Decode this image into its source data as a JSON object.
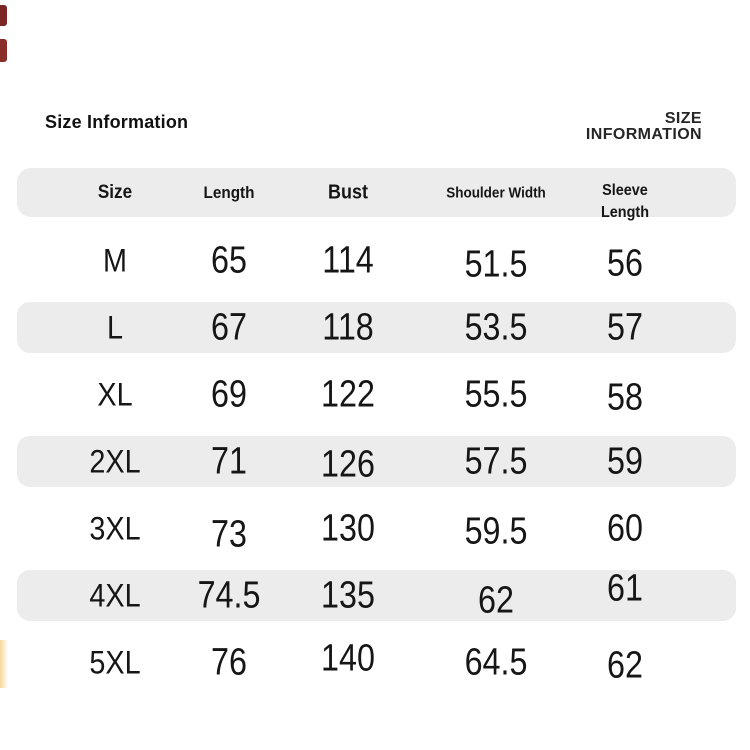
{
  "header": {
    "title_left": "Size Information",
    "title_right": [
      "SIZE",
      "INFORMATION"
    ]
  },
  "chart_data": {
    "type": "table",
    "title": "Size Information",
    "columns": [
      "Size",
      "Length",
      "Bust",
      "Shoulder Width",
      "Sleeve Length"
    ],
    "rows": [
      [
        "M",
        65,
        114,
        51.5,
        56
      ],
      [
        "L",
        67,
        118,
        53.5,
        57
      ],
      [
        "XL",
        69,
        122,
        55.5,
        58
      ],
      [
        "2XL",
        71,
        126,
        57.5,
        59
      ],
      [
        "3XL",
        73,
        130,
        59.5,
        60
      ],
      [
        "4XL",
        74.5,
        135,
        62,
        61
      ],
      [
        "5XL",
        76,
        140,
        64.5,
        62
      ]
    ],
    "layout_hints": {
      "alternating_row_shading": true,
      "shaded_rows": [
        "L",
        "2XL",
        "4XL"
      ],
      "header_shaded": true
    }
  },
  "colors": {
    "row_alt_bg": "#ececec",
    "text": "#1c1c1c",
    "edge_red_1": "#7c2525",
    "edge_red_2": "#8a2c28",
    "edge_yellow": "#f4d894"
  }
}
